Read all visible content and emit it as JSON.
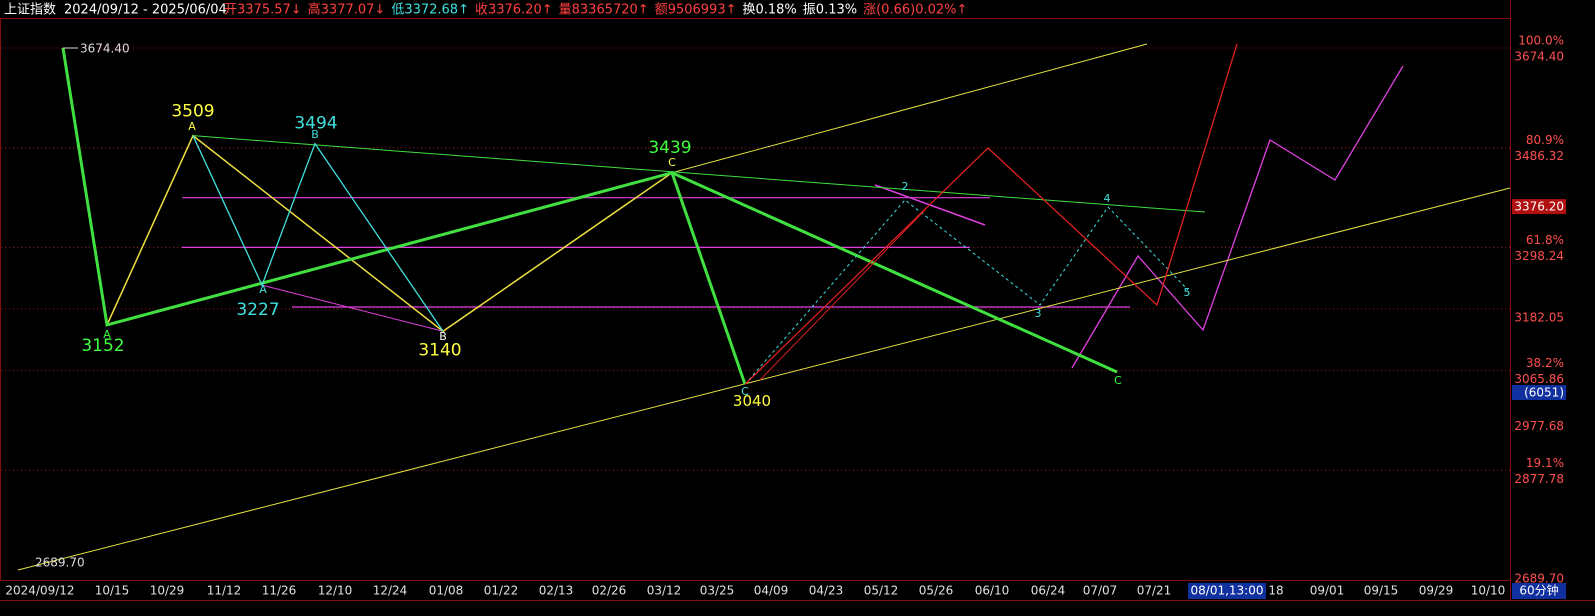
{
  "header": {
    "name": "上证指数",
    "range": "2024/09/12 - 2025/06/04",
    "fields": [
      {
        "text": "开3375.57↓",
        "color": "#ff4040"
      },
      {
        "text": "高3377.07↓",
        "color": "#ff4040"
      },
      {
        "text": "低3372.68↑",
        "color": "#40e0e0"
      },
      {
        "text": "收3376.20↑",
        "color": "#ff4040"
      },
      {
        "text": "量83365720↑",
        "color": "#ff4040"
      },
      {
        "text": "额9506993↑",
        "color": "#ff4040"
      },
      {
        "text": "换0.18%",
        "color": "#ffffff"
      },
      {
        "text": "振0.13%",
        "color": "#ffffff"
      },
      {
        "text": "涨(0.66)0.02%↑",
        "color": "#ff4040"
      }
    ]
  },
  "price_axis": [
    {
      "value": 3674.4,
      "label": "3674.40",
      "fib": "100.0%"
    },
    {
      "value": 3486.32,
      "label": "3486.32",
      "fib": "80.9%"
    },
    {
      "value": 3298.24,
      "label": "3298.24",
      "fib": "61.8%"
    },
    {
      "value": 3182.05,
      "label": "3182.05"
    },
    {
      "value": 3065.86,
      "label": "3065.86",
      "fib": "38.2%"
    },
    {
      "value": 2977.68,
      "label": "2977.68"
    },
    {
      "value": 2877.78,
      "label": "2877.78",
      "fib": "19.1%"
    },
    {
      "value": 2689.7,
      "label": "2689.70"
    }
  ],
  "current_price": {
    "value": 3376.2,
    "label": "3376.20"
  },
  "volume_note": "(6051)",
  "time_axis": [
    "2024/09/12",
    "10/15",
    "10/29",
    "11/12",
    "11/26",
    "12/10",
    "12/24",
    "01/08",
    "01/22",
    "02/13",
    "02/26",
    "03/12",
    "03/25",
    "04/09",
    "04/23",
    "05/12",
    "05/26",
    "06/10",
    "06/24",
    "07/07",
    "07/21",
    "18",
    "09/01",
    "09/15",
    "09/29",
    "10/10"
  ],
  "time_cursor": "08/01,13:00",
  "period": "60分钟",
  "pivots": [
    {
      "label": "3674.40",
      "value": 3674.4,
      "color": "#dddddd"
    },
    {
      "label": "2689.70",
      "value": 2689.7,
      "color": "#dddddd"
    },
    {
      "label": "3509",
      "value": 3509,
      "color": "#ffff40"
    },
    {
      "label": "3494",
      "value": 3494,
      "color": "#40e0e0"
    },
    {
      "label": "3439",
      "value": 3439,
      "color": "#40ff40"
    },
    {
      "label": "3227",
      "value": 3227,
      "color": "#40e0e0"
    },
    {
      "label": "3152",
      "value": 3152,
      "color": "#40ff40"
    },
    {
      "label": "3140",
      "value": 3140,
      "color": "#ffff40"
    },
    {
      "label": "3040",
      "value": 3040,
      "color": "#ffff40"
    }
  ],
  "wave_marks": [
    "A",
    "B",
    "A",
    "A",
    "B",
    "C",
    "C",
    "2",
    "3",
    "4",
    "5",
    "C"
  ]
}
